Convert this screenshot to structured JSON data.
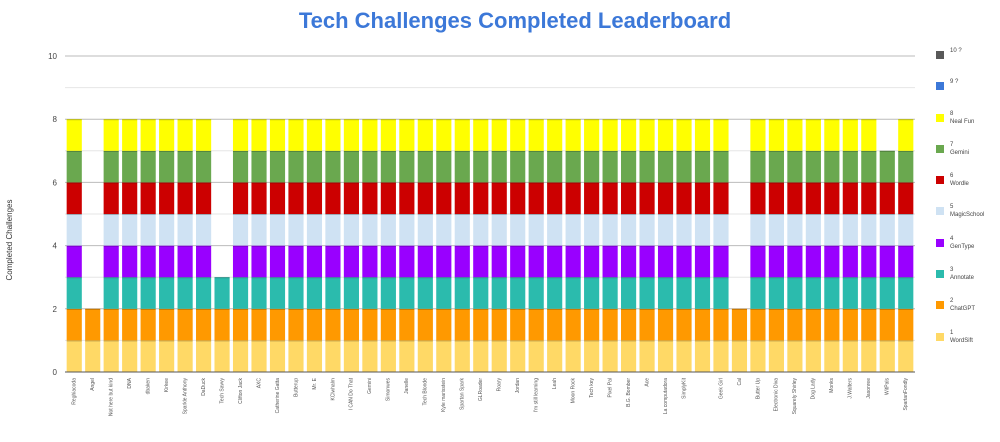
{
  "chart_data": {
    "type": "bar",
    "stacked": true,
    "title": "Tech Challenges Completed Leaderboard",
    "xlabel": "",
    "ylabel": "Completed Challenges",
    "ylim": [
      0,
      10
    ],
    "yticks": [
      0,
      2,
      4,
      6,
      8,
      10
    ],
    "grid": true,
    "legend_position": "right",
    "categories": [
      "Reghiacoda",
      "Angel",
      "Not here but kind",
      "DNA",
      "dbaken",
      "Kirkee",
      "Sparkle Anthony",
      "DaDuck",
      "Tech Savvy",
      "Clifton Jack",
      "AXC",
      "Catherine Gatta",
      "Butterup",
      "Mr. E",
      "KClwhalm",
      "I CAN Do That",
      "Gemini",
      "Simonwes",
      "Janelle",
      "Tech Blonde",
      "Kyle marisstein",
      "Spartan Spark",
      "GLRoader",
      "Roary",
      "Jordan",
      "I'm still learning",
      "Leah",
      "Moon Rock",
      "Tech key",
      "Pixel Pal",
      "B.G. Bomber",
      "Ace",
      "La computadora",
      "SimplyKit",
      "",
      "Geek Girl",
      "Cal",
      "Butter Up",
      "Electronic Diva",
      "Squarely Shirley",
      "Dog Lady",
      "Monks",
      "J.Walters",
      "Jasonree",
      "WitPals",
      "SpartanFondly"
    ],
    "series": [
      {
        "index": "1",
        "name": "WordSift",
        "color": "#ffd966",
        "values": [
          1,
          1,
          1,
          1,
          1,
          1,
          1,
          1,
          1,
          1,
          1,
          1,
          1,
          1,
          1,
          1,
          1,
          1,
          1,
          1,
          1,
          1,
          1,
          1,
          1,
          1,
          1,
          1,
          1,
          1,
          1,
          1,
          1,
          1,
          1,
          1,
          1,
          1,
          1,
          1,
          1,
          1,
          1,
          1,
          1,
          1
        ]
      },
      {
        "index": "2",
        "name": "ChatGPT",
        "color": "#ff9900",
        "values": [
          1,
          1,
          1,
          1,
          1,
          1,
          1,
          1,
          1,
          1,
          1,
          1,
          1,
          1,
          1,
          1,
          1,
          1,
          1,
          1,
          1,
          1,
          1,
          1,
          1,
          1,
          1,
          1,
          1,
          1,
          1,
          1,
          1,
          1,
          1,
          1,
          1,
          1,
          1,
          1,
          1,
          1,
          1,
          1,
          1,
          1
        ]
      },
      {
        "index": "3",
        "name": "Annotate",
        "color": "#2bbbad",
        "values": [
          1,
          0,
          1,
          1,
          1,
          1,
          1,
          1,
          1,
          1,
          1,
          1,
          1,
          1,
          1,
          1,
          1,
          1,
          1,
          1,
          1,
          1,
          1,
          1,
          1,
          1,
          1,
          1,
          1,
          1,
          1,
          1,
          1,
          1,
          1,
          1,
          0,
          1,
          1,
          1,
          1,
          1,
          1,
          1,
          1,
          1
        ]
      },
      {
        "index": "4",
        "name": "GenType",
        "color": "#9900ff",
        "values": [
          1,
          0,
          1,
          1,
          1,
          1,
          1,
          1,
          0,
          1,
          1,
          1,
          1,
          1,
          1,
          1,
          1,
          1,
          1,
          1,
          1,
          1,
          1,
          1,
          1,
          1,
          1,
          1,
          1,
          1,
          1,
          1,
          1,
          1,
          1,
          1,
          0,
          1,
          1,
          1,
          1,
          1,
          1,
          1,
          1,
          1
        ]
      },
      {
        "index": "5",
        "name": "MagicSchool",
        "color": "#cfe2f3",
        "values": [
          1,
          0,
          1,
          1,
          1,
          1,
          1,
          1,
          0,
          1,
          1,
          1,
          1,
          1,
          1,
          1,
          1,
          1,
          1,
          1,
          1,
          1,
          1,
          1,
          1,
          1,
          1,
          1,
          1,
          1,
          1,
          1,
          1,
          1,
          1,
          1,
          0,
          1,
          1,
          1,
          1,
          1,
          1,
          1,
          1,
          1
        ]
      },
      {
        "index": "6",
        "name": "Wordle",
        "color": "#cc0000",
        "values": [
          1,
          0,
          1,
          1,
          1,
          1,
          1,
          1,
          0,
          1,
          1,
          1,
          1,
          1,
          1,
          1,
          1,
          1,
          1,
          1,
          1,
          1,
          1,
          1,
          1,
          1,
          1,
          1,
          1,
          1,
          1,
          1,
          1,
          1,
          1,
          1,
          0,
          1,
          1,
          1,
          1,
          1,
          1,
          1,
          1,
          1
        ]
      },
      {
        "index": "7",
        "name": "Gemini",
        "color": "#6aa84f",
        "values": [
          1,
          0,
          1,
          1,
          1,
          1,
          1,
          1,
          0,
          1,
          1,
          1,
          1,
          1,
          1,
          1,
          1,
          1,
          1,
          1,
          1,
          1,
          1,
          1,
          1,
          1,
          1,
          1,
          1,
          1,
          1,
          1,
          1,
          1,
          1,
          1,
          0,
          1,
          1,
          1,
          1,
          1,
          1,
          1,
          1,
          1
        ]
      },
      {
        "index": "8",
        "name": "Neal Fun",
        "color": "#ffff00",
        "values": [
          1,
          0,
          1,
          1,
          1,
          1,
          1,
          1,
          0,
          1,
          1,
          1,
          1,
          1,
          1,
          1,
          1,
          1,
          1,
          1,
          1,
          1,
          1,
          1,
          1,
          1,
          1,
          1,
          1,
          1,
          1,
          1,
          1,
          1,
          1,
          1,
          0,
          1,
          1,
          1,
          1,
          1,
          1,
          1,
          0,
          1
        ]
      },
      {
        "index": "9 ?",
        "name": "",
        "color": "#3c78d8",
        "values": [
          0,
          0,
          0,
          0,
          0,
          0,
          0,
          0,
          0,
          0,
          0,
          0,
          0,
          0,
          0,
          0,
          0,
          0,
          0,
          0,
          0,
          0,
          0,
          0,
          0,
          0,
          0,
          0,
          0,
          0,
          0,
          0,
          0,
          0,
          0,
          0,
          0,
          0,
          0,
          0,
          0,
          0,
          0,
          0,
          0,
          0
        ]
      },
      {
        "index": "10 ?",
        "name": "",
        "color": "#595959",
        "values": [
          0,
          0,
          0,
          0,
          0,
          0,
          0,
          0,
          0,
          0,
          0,
          0,
          0,
          0,
          0,
          0,
          0,
          0,
          0,
          0,
          0,
          0,
          0,
          0,
          0,
          0,
          0,
          0,
          0,
          0,
          0,
          0,
          0,
          0,
          0,
          0,
          0,
          0,
          0,
          0,
          0,
          0,
          0,
          0,
          0,
          0
        ]
      }
    ]
  }
}
